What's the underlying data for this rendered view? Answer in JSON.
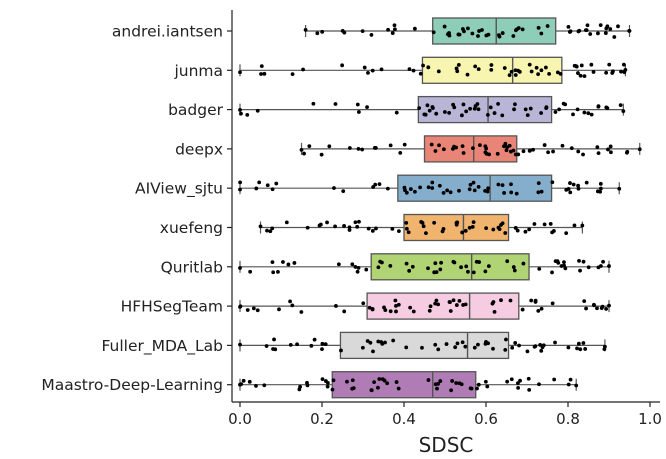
{
  "chart_data": {
    "type": "box",
    "xlabel": "SDSC",
    "xlim": [
      0.0,
      1.0
    ],
    "xticks": [
      "0.0",
      "0.2",
      "0.4",
      "0.6",
      "0.8",
      "1.0"
    ],
    "categories": [
      "andrei.iantsen",
      "junma",
      "badger",
      "deepx",
      "AIView_sjtu",
      "xuefeng",
      "Quritlab",
      "HFHSegTeam",
      "Fuller_MDA_Lab",
      "Maastro-Deep-Learning"
    ],
    "boxes": [
      {
        "category": "andrei.iantsen",
        "whisker_low": 0.16,
        "q1": 0.47,
        "median": 0.625,
        "q3": 0.77,
        "whisker_high": 0.95,
        "color": "#8ecdb8"
      },
      {
        "category": "junma",
        "whisker_low": 0.0,
        "q1": 0.445,
        "median": 0.665,
        "q3": 0.785,
        "whisker_high": 0.94,
        "color": "#f7f5b0"
      },
      {
        "category": "badger",
        "whisker_low": 0.0,
        "q1": 0.435,
        "median": 0.605,
        "q3": 0.76,
        "whisker_high": 0.935,
        "color": "#b8b5d6"
      },
      {
        "category": "deepx",
        "whisker_low": 0.15,
        "q1": 0.45,
        "median": 0.57,
        "q3": 0.675,
        "whisker_high": 0.975,
        "color": "#e98577"
      },
      {
        "category": "AIView_sjtu",
        "whisker_low": 0.0,
        "q1": 0.385,
        "median": 0.61,
        "q3": 0.76,
        "whisker_high": 0.925,
        "color": "#85aecc"
      },
      {
        "category": "xuefeng",
        "whisker_low": 0.05,
        "q1": 0.4,
        "median": 0.545,
        "q3": 0.655,
        "whisker_high": 0.835,
        "color": "#f0b46e"
      },
      {
        "category": "Quritlab",
        "whisker_low": 0.0,
        "q1": 0.32,
        "median": 0.565,
        "q3": 0.705,
        "whisker_high": 0.9,
        "color": "#b0d374"
      },
      {
        "category": "HFHSegTeam",
        "whisker_low": 0.0,
        "q1": 0.31,
        "median": 0.56,
        "q3": 0.68,
        "whisker_high": 0.9,
        "color": "#f5cce1"
      },
      {
        "category": "Fuller_MDA_Lab",
        "whisker_low": 0.0,
        "q1": 0.245,
        "median": 0.555,
        "q3": 0.655,
        "whisker_high": 0.89,
        "color": "#d9d9d9"
      },
      {
        "category": "Maastro-Deep-Learning",
        "whisker_low": 0.0,
        "q1": 0.225,
        "median": 0.47,
        "q3": 0.575,
        "whisker_high": 0.82,
        "color": "#b07cb5"
      }
    ]
  }
}
